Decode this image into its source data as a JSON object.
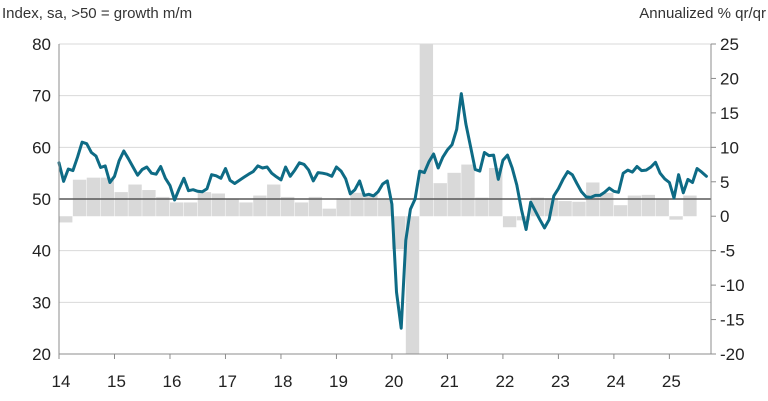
{
  "chart_data": {
    "type": "bar+line",
    "left_axis_title": "Index, sa, >50 = growth m/m",
    "right_axis_title": "Annualized % qr/qr",
    "left_ylim": [
      20,
      80
    ],
    "left_ticks": [
      "80",
      "70",
      "60",
      "50",
      "40",
      "30",
      "20"
    ],
    "right_ylim": [
      -20,
      25
    ],
    "right_ticks": [
      "25",
      "20",
      "15",
      "10",
      "5",
      "0",
      "-5",
      "-10",
      "-15",
      "-20"
    ],
    "x_range": [
      2014,
      2025.75
    ],
    "x_ticks": [
      "14",
      "15",
      "16",
      "17",
      "18",
      "19",
      "20",
      "21",
      "22",
      "23",
      "24",
      "25"
    ],
    "grid": "horizontal",
    "colors": {
      "bars": "#d9d9d9",
      "line": "#0e6b85",
      "reference": "#595959"
    },
    "bars": {
      "axis": "right",
      "x": [
        2014.0,
        2014.25,
        2014.5,
        2014.75,
        2015.0,
        2015.25,
        2015.5,
        2015.75,
        2016.0,
        2016.25,
        2016.5,
        2016.75,
        2017.0,
        2017.25,
        2017.5,
        2017.75,
        2018.0,
        2018.25,
        2018.5,
        2018.75,
        2019.0,
        2019.25,
        2019.5,
        2019.75,
        2020.0,
        2020.25,
        2020.5,
        2020.75,
        2021.0,
        2021.25,
        2021.5,
        2021.75,
        2022.0,
        2022.25,
        2022.5,
        2022.75,
        2023.0,
        2023.25,
        2023.5,
        2023.75,
        2024.0,
        2024.25,
        2024.5,
        2024.75,
        2025.0,
        2025.25
      ],
      "values": [
        -0.9,
        5.3,
        5.6,
        5.6,
        3.5,
        4.6,
        3.8,
        2.8,
        2.0,
        2.0,
        3.5,
        3.3,
        2.5,
        2.0,
        3.0,
        4.6,
        2.8,
        2.0,
        2.8,
        1.1,
        2.6,
        3.4,
        3.2,
        2.4,
        -4.8,
        -31.0,
        29.0,
        4.8,
        6.3,
        7.5,
        2.7,
        7.0,
        -1.6,
        -0.6,
        2.7,
        2.6,
        2.2,
        2.1,
        4.9,
        3.4,
        1.6,
        3.0,
        3.1,
        2.4,
        -0.5,
        3.0
      ]
    },
    "series": [
      {
        "axis": "left",
        "x": [
          2014.0,
          2014.083,
          2014.167,
          2014.25,
          2014.333,
          2014.417,
          2014.5,
          2014.583,
          2014.667,
          2014.75,
          2014.833,
          2014.917,
          2015.0,
          2015.083,
          2015.167,
          2015.25,
          2015.333,
          2015.417,
          2015.5,
          2015.583,
          2015.667,
          2015.75,
          2015.833,
          2015.917,
          2016.0,
          2016.083,
          2016.167,
          2016.25,
          2016.333,
          2016.417,
          2016.5,
          2016.583,
          2016.667,
          2016.75,
          2016.833,
          2016.917,
          2017.0,
          2017.083,
          2017.167,
          2017.25,
          2017.333,
          2017.417,
          2017.5,
          2017.583,
          2017.667,
          2017.75,
          2017.833,
          2017.917,
          2018.0,
          2018.083,
          2018.167,
          2018.25,
          2018.333,
          2018.417,
          2018.5,
          2018.583,
          2018.667,
          2018.75,
          2018.833,
          2018.917,
          2019.0,
          2019.083,
          2019.167,
          2019.25,
          2019.333,
          2019.417,
          2019.5,
          2019.583,
          2019.667,
          2019.75,
          2019.833,
          2019.917,
          2020.0,
          2020.083,
          2020.167,
          2020.25,
          2020.333,
          2020.417,
          2020.5,
          2020.583,
          2020.667,
          2020.75,
          2020.833,
          2020.917,
          2021.0,
          2021.083,
          2021.167,
          2021.25,
          2021.333,
          2021.417,
          2021.5,
          2021.583,
          2021.667,
          2021.75,
          2021.833,
          2021.917,
          2022.0,
          2022.083,
          2022.167,
          2022.25,
          2022.333,
          2022.417,
          2022.5,
          2022.583,
          2022.667,
          2022.75,
          2022.833,
          2022.917,
          2023.0,
          2023.083,
          2023.167,
          2023.25,
          2023.333,
          2023.417,
          2023.5,
          2023.583,
          2023.667,
          2023.75,
          2023.833,
          2023.917,
          2024.0,
          2024.083,
          2024.167,
          2024.25,
          2024.333,
          2024.417,
          2024.5,
          2024.583,
          2024.667,
          2024.75,
          2024.833,
          2024.917,
          2025.0,
          2025.083,
          2025.167,
          2025.25,
          2025.333,
          2025.417,
          2025.5,
          2025.583,
          2025.667
        ],
        "values": [
          57.0,
          53.4,
          55.8,
          55.5,
          58.1,
          61.0,
          60.7,
          59.0,
          58.3,
          56.1,
          56.4,
          53.2,
          54.4,
          57.4,
          59.3,
          57.8,
          56.2,
          54.6,
          55.7,
          56.2,
          55.0,
          54.8,
          56.3,
          54.0,
          52.6,
          49.8,
          52.0,
          54.0,
          51.6,
          51.8,
          51.5,
          51.4,
          52.0,
          54.7,
          54.5,
          54.0,
          55.9,
          53.6,
          53.0,
          53.6,
          54.2,
          54.8,
          55.3,
          56.4,
          56.0,
          56.2,
          55.0,
          54.3,
          53.7,
          56.2,
          54.4,
          55.6,
          57.0,
          56.7,
          55.6,
          53.5,
          55.1,
          55.0,
          54.8,
          54.4,
          56.2,
          55.4,
          53.9,
          51.0,
          51.8,
          53.5,
          50.7,
          50.9,
          50.6,
          51.4,
          52.9,
          53.5,
          49.0,
          32.0,
          25.0,
          42.0,
          48.0,
          50.0,
          55.4,
          55.1,
          57.2,
          58.7,
          56.0,
          58.1,
          59.5,
          60.5,
          63.5,
          70.4,
          64.5,
          60.1,
          55.7,
          55.4,
          59.0,
          58.4,
          58.5,
          53.8,
          57.5,
          58.5,
          56.0,
          52.7,
          48.0,
          44.1,
          49.4,
          47.7,
          46.0,
          44.4,
          46.0,
          50.6,
          52.0,
          53.8,
          55.3,
          54.7,
          53.0,
          51.4,
          50.4,
          50.3,
          50.7,
          50.7,
          51.3,
          52.1,
          51.5,
          51.3,
          55.0,
          55.6,
          55.2,
          56.3,
          55.5,
          55.6,
          56.2,
          57.1,
          55.0,
          53.9,
          53.2,
          50.2,
          54.7,
          51.2,
          53.8,
          53.2,
          55.9,
          55.2,
          54.4
        ]
      }
    ]
  }
}
